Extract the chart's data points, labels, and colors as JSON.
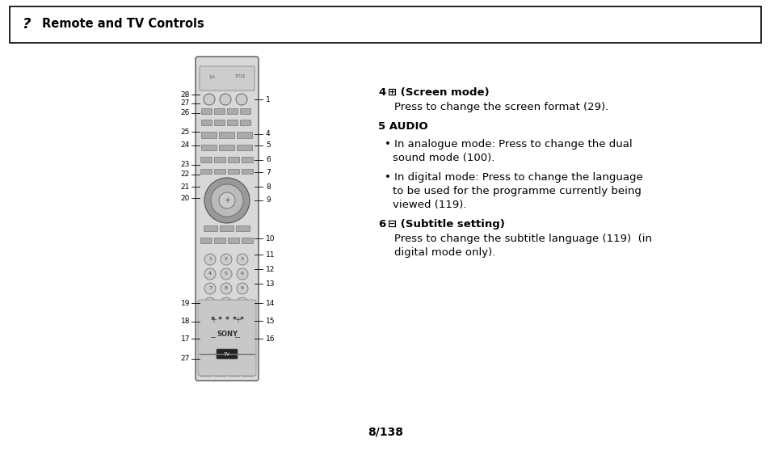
{
  "bg_color": "#ffffff",
  "border_color": "#000000",
  "header_text": "Remote and TV Controls",
  "question_mark": "?",
  "page_number": "8/138",
  "section4_title_num": "4",
  "section4_title_icon": " ⊞ (Screen mode)",
  "section4_body": "Press to change the screen format (29).",
  "section5_title": "5 AUDIO",
  "section5_b1a": "• In analogue mode: Press to change the dual",
  "section5_b1b": "  sound mode (100).",
  "section5_b2a": "• In digital mode: Press to change the language",
  "section5_b2b": "  to be used for the programme currently being",
  "section5_b2c": "  viewed (119).",
  "section6_title_num": "6",
  "section6_title_icon": " ⊟ (Subtitle setting)",
  "section6_body1": "Press to change the subtitle language (119)  (in",
  "section6_body2": "digital mode only).",
  "remote_body_color": "#d8d8d8",
  "remote_border_color": "#555555",
  "remote_btn_color": "#bbbbbb",
  "remote_btn_border": "#666666",
  "remote_dark_color": "#888888",
  "left_labels": [
    [
      "28",
      0
    ],
    [
      "27",
      1
    ],
    [
      "26",
      2
    ],
    [
      "25",
      3
    ],
    [
      "24",
      4
    ],
    [
      "23",
      5
    ],
    [
      "22",
      6
    ],
    [
      "21",
      7
    ],
    [
      "20",
      8
    ],
    [
      "19",
      9
    ],
    [
      "18",
      10
    ],
    [
      "17",
      11
    ],
    [
      "27",
      12
    ]
  ],
  "right_labels": [
    [
      "1",
      0
    ],
    [
      "4",
      1
    ],
    [
      "5",
      2
    ],
    [
      "6",
      3
    ],
    [
      "7",
      4
    ],
    [
      "8",
      5
    ],
    [
      "9",
      6
    ],
    [
      "10",
      7
    ],
    [
      "11",
      8
    ],
    [
      "12",
      9
    ],
    [
      "13",
      10
    ],
    [
      "14",
      11
    ],
    [
      "15",
      12
    ],
    [
      "16",
      13
    ]
  ]
}
